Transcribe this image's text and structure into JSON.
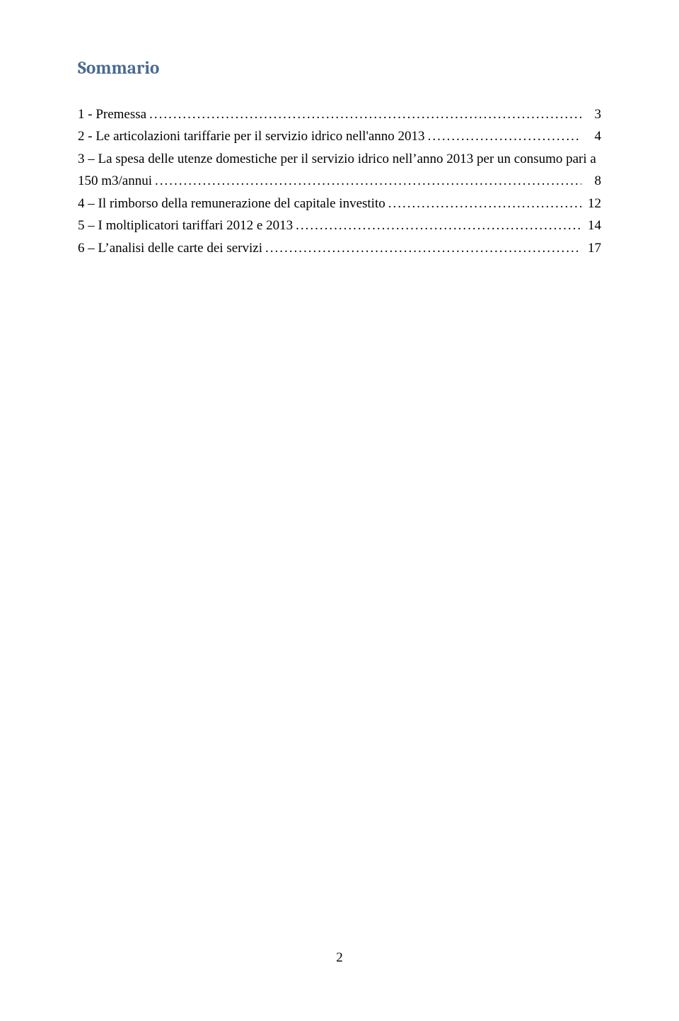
{
  "colors": {
    "heading": "#4a6a92",
    "body_text": "#000000",
    "background": "#ffffff"
  },
  "typography": {
    "heading_font": "Cambria",
    "body_font": "Times New Roman",
    "heading_fontsize_pt": 19,
    "body_fontsize_pt": 14
  },
  "heading": "Sommario",
  "toc": {
    "type": "table-of-contents",
    "entries": [
      {
        "lines": [
          "1 - Premessa"
        ],
        "page": "3"
      },
      {
        "lines": [
          "2 - Le articolazioni tariffarie per il servizio idrico nell'anno 2013"
        ],
        "page": "4"
      },
      {
        "lines": [
          "3 – La spesa delle utenze domestiche per il servizio idrico nell’anno 2013 per un consumo pari a",
          "150 m3/annui"
        ],
        "page": "8"
      },
      {
        "lines": [
          "4 – Il rimborso della remunerazione del capitale investito"
        ],
        "page": "12"
      },
      {
        "lines": [
          "5 – I moltiplicatori tariffari 2012 e 2013"
        ],
        "page": "14"
      },
      {
        "lines": [
          "6 – L’analisi delle carte dei servizi"
        ],
        "page": "17"
      }
    ]
  },
  "page_number": "2"
}
